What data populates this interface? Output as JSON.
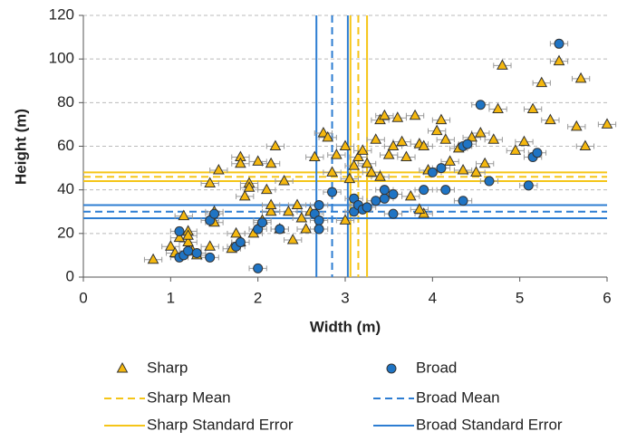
{
  "chart_data": {
    "type": "scatter",
    "xlabel": "Width (m)",
    "ylabel": "Height (m)",
    "xlim": [
      0,
      6
    ],
    "ylim": [
      0,
      120
    ],
    "xticks": [
      0,
      1,
      2,
      3,
      4,
      5,
      6
    ],
    "yticks": [
      0,
      20,
      40,
      60,
      80,
      100,
      120
    ],
    "grid": true,
    "legend": "bottom",
    "series": [
      {
        "name": "Sharp",
        "marker": "triangle",
        "color": "#f5b80f",
        "xerr": 0.1,
        "x": [
          0.8,
          1.0,
          1.05,
          1.1,
          1.15,
          1.2,
          1.2,
          1.25,
          1.2,
          1.3,
          1.45,
          1.45,
          1.5,
          1.5,
          1.55,
          1.7,
          1.75,
          1.8,
          1.8,
          1.8,
          1.85,
          1.9,
          1.9,
          1.95,
          2.0,
          2.05,
          2.1,
          2.15,
          2.15,
          2.15,
          2.2,
          2.25,
          2.3,
          2.35,
          2.4,
          2.45,
          2.5,
          2.55,
          2.6,
          2.65,
          2.75,
          2.8,
          2.85,
          2.9,
          3.0,
          3.0,
          3.05,
          3.1,
          3.15,
          3.2,
          3.25,
          3.3,
          3.35,
          3.4,
          3.4,
          3.45,
          3.5,
          3.55,
          3.6,
          3.65,
          3.7,
          3.75,
          3.8,
          3.85,
          3.9,
          3.9,
          3.95,
          4.05,
          4.1,
          4.15,
          4.2,
          4.3,
          4.35,
          4.45,
          4.5,
          4.55,
          4.6,
          4.7,
          4.75,
          4.8,
          4.95,
          5.05,
          5.15,
          5.25,
          5.35,
          5.45,
          5.65,
          5.7,
          5.75,
          6.0,
          3.85
        ],
        "y": [
          8,
          14,
          11,
          18,
          28,
          21,
          16,
          12,
          19,
          10,
          14,
          43,
          25,
          30,
          49,
          13,
          20,
          55,
          52,
          16,
          37,
          43,
          41,
          20,
          53,
          26,
          40,
          52,
          30,
          33,
          60,
          22,
          44,
          30,
          17,
          33,
          27,
          22,
          30,
          55,
          66,
          64,
          48,
          56,
          60,
          26,
          45,
          51,
          55,
          58,
          52,
          48,
          63,
          72,
          46,
          74,
          56,
          60,
          73,
          62,
          55,
          37,
          74,
          61,
          60,
          29,
          49,
          67,
          72,
          63,
          53,
          59,
          49,
          64,
          48,
          66,
          52,
          63,
          77,
          97,
          58,
          62,
          77,
          89,
          72,
          99,
          69,
          91,
          60,
          70,
          31
        ]
      },
      {
        "name": "Broad",
        "marker": "circle",
        "color": "#1f74c4",
        "xerr": 0.1,
        "x": [
          1.1,
          1.1,
          1.15,
          1.2,
          1.3,
          1.45,
          1.45,
          1.5,
          1.75,
          1.8,
          2.0,
          2.0,
          2.05,
          2.25,
          2.65,
          2.7,
          2.7,
          2.7,
          2.85,
          3.1,
          3.1,
          3.15,
          3.2,
          3.25,
          3.35,
          3.45,
          3.55,
          3.55,
          3.9,
          4.0,
          4.1,
          4.15,
          4.35,
          4.35,
          4.4,
          4.55,
          4.65,
          5.1,
          5.15,
          5.2,
          5.45,
          3.45
        ],
        "y": [
          21,
          9,
          10,
          12,
          11,
          9,
          26,
          29,
          14,
          16,
          22,
          4,
          25,
          22,
          29,
          33,
          26,
          22,
          39,
          30,
          36,
          33,
          31,
          32,
          35,
          36,
          38,
          29,
          40,
          48,
          50,
          40,
          60,
          35,
          61,
          79,
          44,
          42,
          55,
          57,
          107,
          40
        ]
      }
    ],
    "reference_lines": [
      {
        "name": "Sharp Mean",
        "color": "#f5c518",
        "dashed": true,
        "x": 3.15,
        "y": 46
      },
      {
        "name": "Broad Mean",
        "color": "#2d7dd2",
        "dashed": true,
        "x": 2.85,
        "y": 30
      },
      {
        "name": "Sharp Standard Error",
        "color": "#f5c518",
        "dashed": false,
        "x": [
          3.06,
          3.25
        ],
        "y": [
          44,
          48
        ]
      },
      {
        "name": "Broad Standard Error",
        "color": "#2d7dd2",
        "dashed": false,
        "x": [
          2.67,
          3.03
        ],
        "y": [
          27,
          33
        ]
      }
    ]
  }
}
